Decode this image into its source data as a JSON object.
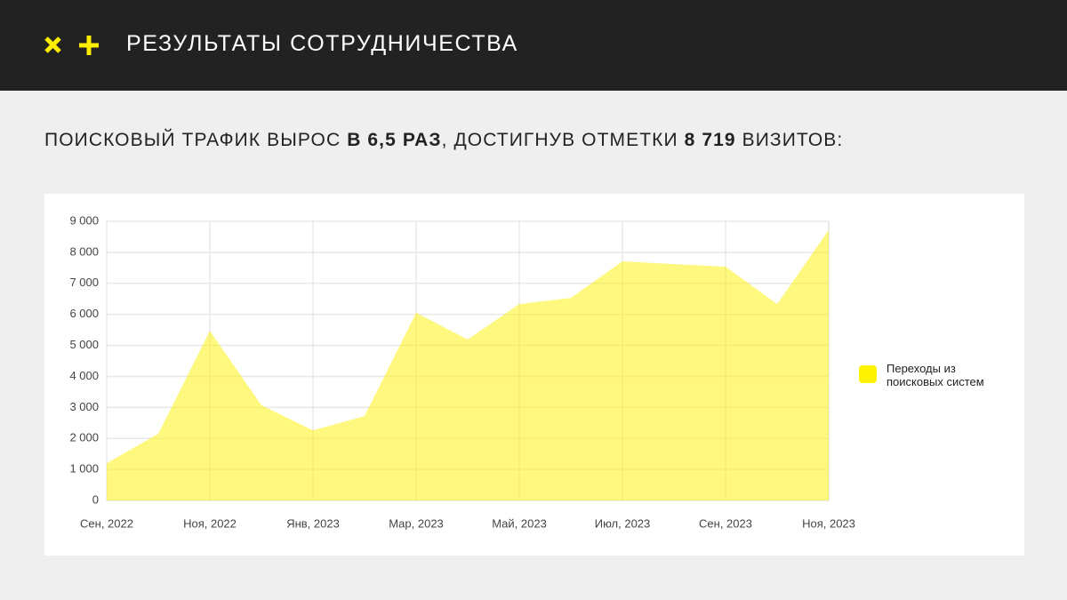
{
  "header": {
    "title": "РЕЗУЛЬТАТЫ СОТРУДНИЧЕСТВА"
  },
  "subtitle": [
    "ПОИСКОВЫЙ ТРАФИК ВЫРОС ",
    "В 6,5 РАЗ",
    ", ДОСТИГНУВ ОТМЕТКИ ",
    "8 719",
    " ВИЗИТОВ:"
  ],
  "chart_data": {
    "type": "area",
    "categories": [
      "Сен, 2022",
      null,
      "Ноя, 2022",
      null,
      "Янв, 2023",
      null,
      "Мар, 2023",
      null,
      "Май, 2023",
      null,
      "Июл, 2023",
      null,
      "Сен, 2023",
      null,
      "Ноя, 2023"
    ],
    "series": [
      {
        "name": "Переходы из поисковых систем",
        "color": "#fff200",
        "values": [
          1200,
          2150,
          5470,
          3070,
          2260,
          2720,
          6050,
          5190,
          6330,
          6530,
          7710,
          7620,
          7540,
          6330,
          8719
        ]
      }
    ],
    "ylim": [
      0,
      9000
    ],
    "yticks": [
      0,
      {
        "value": 1000,
        "label": "1 000"
      },
      {
        "value": 2000,
        "label": "2 000"
      },
      {
        "value": 3000,
        "label": "3 000"
      },
      {
        "value": 4000,
        "label": "4 000"
      },
      {
        "value": 5000,
        "label": "5 000"
      },
      {
        "value": 6000,
        "label": "6 000"
      },
      {
        "value": 7000,
        "label": "7 000"
      },
      {
        "value": 8000,
        "label": "8 000"
      },
      {
        "value": 9000,
        "label": "9 000"
      }
    ],
    "grid": true
  }
}
